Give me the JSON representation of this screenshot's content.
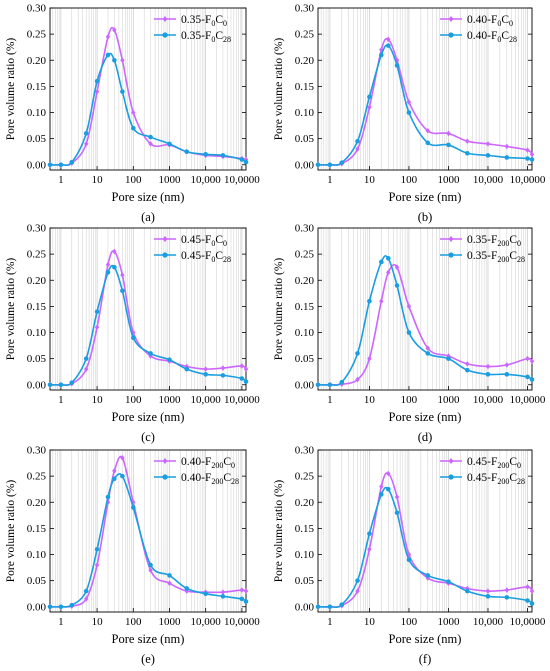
{
  "colors": {
    "series_a": "#cc66ff",
    "series_b": "#1a9ee0",
    "grid": "#c8c8c8"
  },
  "chart_data": [
    {
      "type": "line",
      "panel_label": "(a)",
      "xlabel": "Pore size (nm)",
      "ylabel": "Pore volume ratio (%)",
      "xscale": "log",
      "xlim": [
        0.5,
        130000
      ],
      "ylim": [
        -0.01,
        0.3
      ],
      "xticks": [
        "1",
        "10",
        "100",
        "1000",
        "10,000",
        "10,0000"
      ],
      "yticks": [
        "0.00",
        "0.05",
        "0.10",
        "0.15",
        "0.20",
        "0.25",
        "0.30"
      ],
      "grid": "vertical minor lines",
      "legend_position": "top-right",
      "x": [
        0.5,
        1,
        2,
        5,
        10,
        20,
        30,
        50,
        100,
        300,
        1000,
        3000,
        10000,
        30000,
        100000,
        130000
      ],
      "series": [
        {
          "name_prefix": "0.35-F",
          "name_sub1": "0",
          "name_mid": "C",
          "name_sub2": "0",
          "color": "#cc66ff",
          "marker": "diamond",
          "values": [
            0.0,
            0.0,
            0.003,
            0.04,
            0.14,
            0.245,
            0.258,
            0.2,
            0.1,
            0.04,
            0.038,
            0.025,
            0.018,
            0.016,
            0.012,
            0.01
          ]
        },
        {
          "name_prefix": "0.35-F",
          "name_sub1": "0",
          "name_mid": "C",
          "name_sub2": "28",
          "color": "#1a9ee0",
          "marker": "circle",
          "values": [
            0.0,
            0.0,
            0.005,
            0.06,
            0.16,
            0.21,
            0.2,
            0.14,
            0.07,
            0.053,
            0.04,
            0.025,
            0.02,
            0.018,
            0.01,
            0.005
          ]
        }
      ]
    },
    {
      "type": "line",
      "panel_label": "(b)",
      "xlabel": "Pore size (nm)",
      "ylabel": "Pore volume ratio (%)",
      "xscale": "log",
      "xlim": [
        0.5,
        130000
      ],
      "ylim": [
        -0.01,
        0.3
      ],
      "xticks": [
        "1",
        "10",
        "100",
        "1000",
        "10,000",
        "10,0000"
      ],
      "yticks": [
        "0.00",
        "0.05",
        "0.10",
        "0.15",
        "0.20",
        "0.25",
        "0.30"
      ],
      "grid": "vertical minor lines",
      "legend_position": "top-right",
      "x": [
        0.5,
        1,
        2,
        5,
        10,
        20,
        30,
        50,
        100,
        300,
        1000,
        3000,
        10000,
        30000,
        100000,
        130000
      ],
      "series": [
        {
          "name_prefix": "0.40-F",
          "name_sub1": "0",
          "name_mid": "C",
          "name_sub2": "0",
          "color": "#cc66ff",
          "marker": "diamond",
          "values": [
            0.0,
            0.0,
            0.002,
            0.03,
            0.11,
            0.22,
            0.24,
            0.2,
            0.12,
            0.065,
            0.06,
            0.045,
            0.04,
            0.035,
            0.028,
            0.02
          ]
        },
        {
          "name_prefix": "0.40-F",
          "name_sub1": "0",
          "name_mid": "C",
          "name_sub2": "28",
          "color": "#1a9ee0",
          "marker": "circle",
          "values": [
            0.0,
            0.0,
            0.004,
            0.045,
            0.13,
            0.21,
            0.228,
            0.19,
            0.1,
            0.042,
            0.038,
            0.022,
            0.018,
            0.014,
            0.012,
            0.01
          ]
        }
      ]
    },
    {
      "type": "line",
      "panel_label": "(c)",
      "xlabel": "Pore size (nm)",
      "ylabel": "Pore volume ratio (%)",
      "xscale": "log",
      "xlim": [
        0.5,
        130000
      ],
      "ylim": [
        -0.01,
        0.3
      ],
      "xticks": [
        "1",
        "10",
        "100",
        "1000",
        "10,000",
        "10,0000"
      ],
      "yticks": [
        "0.00",
        "0.05",
        "0.10",
        "0.15",
        "0.20",
        "0.25",
        "0.30"
      ],
      "grid": "vertical minor lines",
      "legend_position": "top-right",
      "x": [
        0.5,
        1,
        2,
        5,
        10,
        20,
        30,
        50,
        100,
        300,
        1000,
        3000,
        10000,
        30000,
        100000,
        130000
      ],
      "series": [
        {
          "name_prefix": "0.45-F",
          "name_sub1": "0",
          "name_mid": "C",
          "name_sub2": "0",
          "color": "#cc66ff",
          "marker": "diamond",
          "values": [
            0.0,
            0.0,
            0.002,
            0.03,
            0.11,
            0.23,
            0.255,
            0.21,
            0.1,
            0.055,
            0.045,
            0.035,
            0.03,
            0.032,
            0.036,
            0.03
          ]
        },
        {
          "name_prefix": "0.45-F",
          "name_sub1": "0",
          "name_mid": "C",
          "name_sub2": "28",
          "color": "#1a9ee0",
          "marker": "circle",
          "values": [
            0.0,
            0.0,
            0.004,
            0.05,
            0.14,
            0.215,
            0.225,
            0.18,
            0.09,
            0.06,
            0.048,
            0.03,
            0.02,
            0.018,
            0.012,
            0.006
          ]
        }
      ]
    },
    {
      "type": "line",
      "panel_label": "(d)",
      "xlabel": "Pore size (nm)",
      "ylabel": "Pore volume ratio (%)",
      "xscale": "log",
      "xlim": [
        0.5,
        130000
      ],
      "ylim": [
        -0.01,
        0.3
      ],
      "xticks": [
        "1",
        "10",
        "100",
        "1000",
        "10,000",
        "10,0000"
      ],
      "yticks": [
        "0.00",
        "0.05",
        "0.10",
        "0.15",
        "0.20",
        "0.25",
        "0.30"
      ],
      "grid": "vertical minor lines",
      "legend_position": "top-right",
      "x": [
        0.5,
        1,
        2,
        5,
        10,
        20,
        30,
        50,
        100,
        300,
        1000,
        3000,
        10000,
        30000,
        100000,
        130000
      ],
      "series": [
        {
          "name_prefix": "0.35-F",
          "name_sub1": "200",
          "name_mid": "C",
          "name_sub2": "0",
          "color": "#cc66ff",
          "marker": "diamond",
          "values": [
            0.0,
            0.0,
            0.001,
            0.01,
            0.05,
            0.16,
            0.215,
            0.225,
            0.15,
            0.07,
            0.055,
            0.04,
            0.035,
            0.038,
            0.05,
            0.045
          ]
        },
        {
          "name_prefix": "0.35-F",
          "name_sub1": "200",
          "name_mid": "C",
          "name_sub2": "28",
          "color": "#1a9ee0",
          "marker": "circle",
          "values": [
            0.0,
            0.0,
            0.005,
            0.06,
            0.16,
            0.235,
            0.242,
            0.19,
            0.1,
            0.06,
            0.05,
            0.028,
            0.02,
            0.02,
            0.015,
            0.01
          ]
        }
      ]
    },
    {
      "type": "line",
      "panel_label": "(e)",
      "xlabel": "Pore size (nm)",
      "ylabel": "Pore volume ratio (%)",
      "xscale": "log",
      "xlim": [
        0.5,
        130000
      ],
      "ylim": [
        -0.01,
        0.3
      ],
      "xticks": [
        "1",
        "10",
        "100",
        "1000",
        "10,000",
        "10,0000"
      ],
      "yticks": [
        "0.00",
        "0.05",
        "0.10",
        "0.15",
        "0.20",
        "0.25",
        "0.30"
      ],
      "grid": "vertical minor lines",
      "legend_position": "top-right",
      "x": [
        0.5,
        1,
        2,
        5,
        10,
        20,
        30,
        50,
        100,
        300,
        1000,
        3000,
        10000,
        30000,
        100000,
        130000
      ],
      "series": [
        {
          "name_prefix": "0.40-F",
          "name_sub1": "200",
          "name_mid": "C",
          "name_sub2": "0",
          "color": "#cc66ff",
          "marker": "diamond",
          "values": [
            0.0,
            0.0,
            0.001,
            0.015,
            0.08,
            0.2,
            0.26,
            0.285,
            0.2,
            0.07,
            0.045,
            0.03,
            0.028,
            0.028,
            0.032,
            0.03
          ]
        },
        {
          "name_prefix": "0.40-F",
          "name_sub1": "200",
          "name_mid": "C",
          "name_sub2": "28",
          "color": "#1a9ee0",
          "marker": "circle",
          "values": [
            0.0,
            0.0,
            0.003,
            0.03,
            0.11,
            0.21,
            0.245,
            0.25,
            0.19,
            0.08,
            0.06,
            0.035,
            0.025,
            0.02,
            0.015,
            0.01
          ]
        }
      ]
    },
    {
      "type": "line",
      "panel_label": "(f)",
      "xlabel": "Pore size (nm)",
      "ylabel": "Pore volume ratio (%)",
      "xscale": "log",
      "xlim": [
        0.5,
        130000
      ],
      "ylim": [
        -0.01,
        0.3
      ],
      "xticks": [
        "1",
        "10",
        "100",
        "1000",
        "10,000",
        "10,0000"
      ],
      "yticks": [
        "0.00",
        "0.05",
        "0.10",
        "0.15",
        "0.20",
        "0.25",
        "0.30"
      ],
      "grid": "vertical minor lines",
      "legend_position": "top-right",
      "x": [
        0.5,
        1,
        2,
        5,
        10,
        20,
        30,
        50,
        100,
        300,
        1000,
        3000,
        10000,
        30000,
        100000,
        130000
      ],
      "series": [
        {
          "name_prefix": "0.45-F",
          "name_sub1": "200",
          "name_mid": "C",
          "name_sub2": "0",
          "color": "#cc66ff",
          "marker": "diamond",
          "values": [
            0.0,
            0.0,
            0.002,
            0.03,
            0.11,
            0.23,
            0.255,
            0.21,
            0.1,
            0.055,
            0.045,
            0.035,
            0.03,
            0.032,
            0.038,
            0.03
          ]
        },
        {
          "name_prefix": "0.45-F",
          "name_sub1": "200",
          "name_mid": "C",
          "name_sub2": "28",
          "color": "#1a9ee0",
          "marker": "circle",
          "values": [
            0.0,
            0.0,
            0.004,
            0.05,
            0.14,
            0.215,
            0.225,
            0.18,
            0.09,
            0.06,
            0.048,
            0.03,
            0.02,
            0.018,
            0.012,
            0.006
          ]
        }
      ]
    }
  ]
}
